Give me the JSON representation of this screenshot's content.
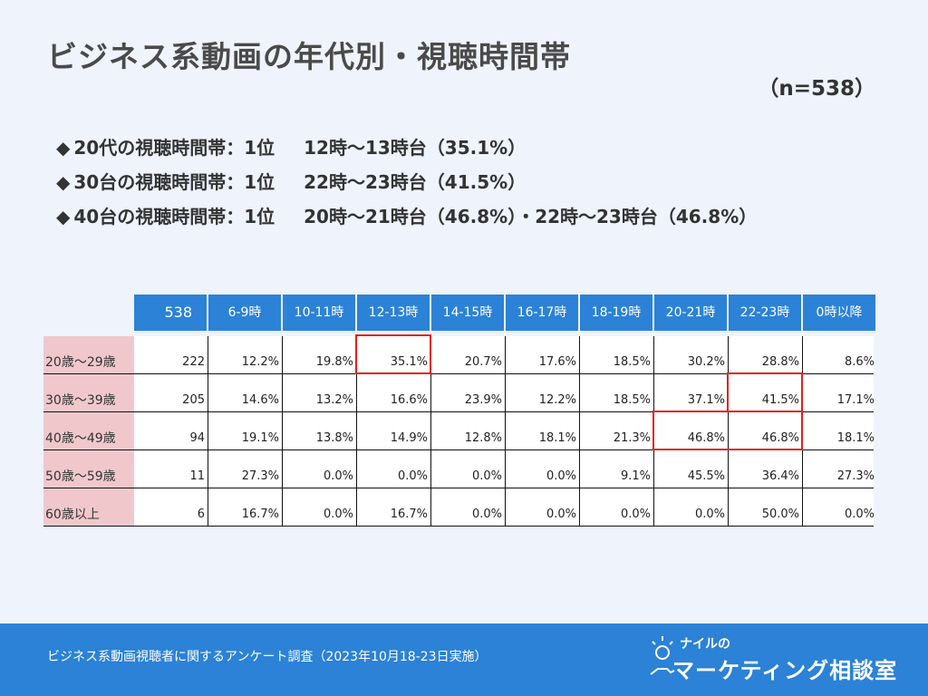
{
  "title": "ビジネス系動画の年代別・視聴時間帯",
  "sample_size": "（n=538）",
  "bullets": [
    {
      "mark": "◆",
      "text": "20代の視聴時間帯：1位",
      "detail": "12時～13時台（35.1%）"
    },
    {
      "mark": "◆",
      "text": "30台の視聴時間帯：1位",
      "detail": "22時～23時台（41.5%）"
    },
    {
      "mark": "◆",
      "text": "40台の視聴時間帯：1位",
      "detail": "20時～21時台（46.8%）・22時～23時台（46.8%）"
    }
  ],
  "table": {
    "header": {
      "total": "538",
      "slots": [
        "6-9時",
        "10-11時",
        "12-13時",
        "14-15時",
        "16-17時",
        "18-19時",
        "20-21時",
        "22-23時",
        "0時以降"
      ]
    },
    "rows": [
      {
        "label": "20歳～29歳",
        "total": "222",
        "values": [
          "12.2%",
          "19.8%",
          "35.1%",
          "20.7%",
          "17.6%",
          "18.5%",
          "30.2%",
          "28.8%",
          "8.6%"
        ]
      },
      {
        "label": "30歳～39歳",
        "total": "205",
        "values": [
          "14.6%",
          "13.2%",
          "16.6%",
          "23.9%",
          "12.2%",
          "18.5%",
          "37.1%",
          "41.5%",
          "17.1%"
        ]
      },
      {
        "label": "40歳～49歳",
        "total": "94",
        "values": [
          "19.1%",
          "13.8%",
          "14.9%",
          "12.8%",
          "18.1%",
          "21.3%",
          "46.8%",
          "46.8%",
          "18.1%"
        ]
      },
      {
        "label": "50歳～59歳",
        "total": "11",
        "values": [
          "27.3%",
          "0.0%",
          "0.0%",
          "0.0%",
          "0.0%",
          "9.1%",
          "45.5%",
          "36.4%",
          "27.3%"
        ]
      },
      {
        "label": "60歳以上",
        "total": "6",
        "values": [
          "16.7%",
          "0.0%",
          "16.7%",
          "0.0%",
          "0.0%",
          "0.0%",
          "0.0%",
          "50.0%",
          "0.0%"
        ]
      }
    ],
    "highlight_color": "#e02020"
  },
  "footer": {
    "source": "ビジネス系動画視聴者に関するアンケート調査（2023年10月18-23日実施）",
    "logo_small": "ナイルの",
    "logo_big": "マーケティング相談室"
  },
  "colors": {
    "accent": "#2b82d6",
    "row_label_bg": "#f0c8cc",
    "background": "#eef3fc"
  }
}
